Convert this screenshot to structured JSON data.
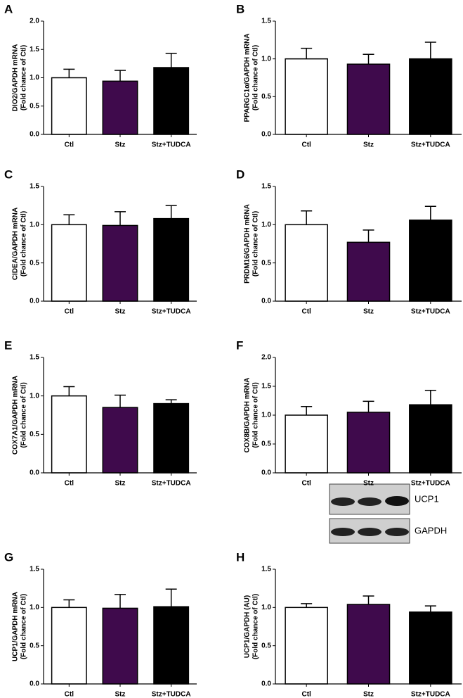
{
  "chart_data": [
    {
      "type": "bar",
      "panel": "A",
      "ylabel": [
        "DIO2/GAPDH mRNA",
        "(Fold chance of Ctl)"
      ],
      "categories": [
        "Ctl",
        "Stz",
        "Stz+TUDCA"
      ],
      "values": [
        1.0,
        0.94,
        1.18
      ],
      "errors": [
        0.15,
        0.19,
        0.25
      ],
      "colors": [
        "#ffffff",
        "#3f0a4c",
        "#000000"
      ],
      "ylim": [
        0,
        2
      ],
      "yticks": [
        {
          "value": 0,
          "label": "0.0"
        },
        0.5,
        {
          "value": 1,
          "label": "1.0"
        },
        1.5,
        {
          "value": 2,
          "label": "2.0"
        }
      ]
    },
    {
      "type": "bar",
      "panel": "B",
      "ylabel": [
        "PPARGC1α/GAPDH mRNA",
        "(Fold chance of Ctl)"
      ],
      "categories": [
        "Ctl",
        "Stz",
        "Stz+TUDCA"
      ],
      "values": [
        1.0,
        0.93,
        1.0
      ],
      "errors": [
        0.14,
        0.13,
        0.22
      ],
      "colors": [
        "#ffffff",
        "#3f0a4c",
        "#000000"
      ],
      "ylim": [
        0,
        1.5
      ],
      "yticks": [
        {
          "value": 0,
          "label": "0.0"
        },
        0.5,
        {
          "value": 1,
          "label": "1.0"
        },
        1.5
      ]
    },
    {
      "type": "bar",
      "panel": "C",
      "ylabel": [
        "CIDEA/GAPDH mRNA",
        "(Fold chance of Ctl)"
      ],
      "categories": [
        "Ctl",
        "Stz",
        "Stz+TUDCA"
      ],
      "values": [
        1.0,
        0.99,
        1.08
      ],
      "errors": [
        0.13,
        0.18,
        0.17
      ],
      "colors": [
        "#ffffff",
        "#3f0a4c",
        "#000000"
      ],
      "ylim": [
        0,
        1.5
      ],
      "yticks": [
        {
          "value": 0,
          "label": "0.0"
        },
        0.5,
        {
          "value": 1,
          "label": "1.0"
        },
        1.5
      ]
    },
    {
      "type": "bar",
      "panel": "D",
      "ylabel": [
        "PRDM16/GAPDH mRNA",
        "(Fold chance of Ctl)"
      ],
      "categories": [
        "Ctl",
        "Stz",
        "Stz+TUDCA"
      ],
      "values": [
        1.0,
        0.77,
        1.06
      ],
      "errors": [
        0.18,
        0.16,
        0.18
      ],
      "colors": [
        "#ffffff",
        "#3f0a4c",
        "#000000"
      ],
      "ylim": [
        0,
        1.5
      ],
      "yticks": [
        {
          "value": 0,
          "label": "0.0"
        },
        0.5,
        {
          "value": 1,
          "label": "1.0"
        },
        1.5
      ]
    },
    {
      "type": "bar",
      "panel": "E",
      "ylabel": [
        "COX7A1/GAPDH mRNA",
        "(Fold chance of Ctl)"
      ],
      "categories": [
        "Ctl",
        "Stz",
        "Stz+TUDCA"
      ],
      "values": [
        1.0,
        0.85,
        0.9
      ],
      "errors": [
        0.12,
        0.16,
        0.05
      ],
      "colors": [
        "#ffffff",
        "#3f0a4c",
        "#000000"
      ],
      "ylim": [
        0,
        1.5
      ],
      "yticks": [
        {
          "value": 0,
          "label": "0.0"
        },
        0.5,
        {
          "value": 1,
          "label": "1.0"
        },
        1.5
      ]
    },
    {
      "type": "bar",
      "panel": "F",
      "ylabel": [
        "COX8B/GAPDH mRNA",
        "(Fold chance of Ctl)"
      ],
      "categories": [
        "Ctl",
        "Stz",
        "Stz+TUDCA"
      ],
      "values": [
        1.0,
        1.05,
        1.18
      ],
      "errors": [
        0.15,
        0.19,
        0.25
      ],
      "colors": [
        "#ffffff",
        "#3f0a4c",
        "#000000"
      ],
      "ylim": [
        0,
        2
      ],
      "yticks": [
        {
          "value": 0,
          "label": "0.0"
        },
        0.5,
        {
          "value": 1,
          "label": "1.0"
        },
        1.5,
        {
          "value": 2,
          "label": "2.0"
        }
      ]
    },
    {
      "type": "bar",
      "panel": "G",
      "ylabel": [
        "UCP1/GAPDH mRNA",
        "(Fold chance of Ctl)"
      ],
      "categories": [
        "Ctl",
        "Stz",
        "Stz+TUDCA"
      ],
      "values": [
        1.0,
        0.99,
        1.01
      ],
      "errors": [
        0.1,
        0.18,
        0.23
      ],
      "colors": [
        "#ffffff",
        "#3f0a4c",
        "#000000"
      ],
      "ylim": [
        0,
        1.5
      ],
      "yticks": [
        {
          "value": 0,
          "label": "0.0"
        },
        0.5,
        {
          "value": 1,
          "label": "1.0"
        },
        1.5
      ]
    },
    {
      "type": "bar",
      "panel": "H",
      "ylabel": [
        "UCP1/GAPDH (AU)",
        "(Fold chance of Ctl)"
      ],
      "categories": [
        "Ctl",
        "Stz",
        "Stz+TUDCA"
      ],
      "values": [
        1.0,
        1.04,
        0.94
      ],
      "errors": [
        0.05,
        0.11,
        0.08
      ],
      "colors": [
        "#ffffff",
        "#3f0a4c",
        "#000000"
      ],
      "ylim": [
        0,
        1.5
      ],
      "yticks": [
        {
          "value": 0,
          "label": "0.0"
        },
        0.5,
        {
          "value": 1,
          "label": "1.0"
        },
        1.5
      ]
    }
  ],
  "blot": {
    "labels": [
      "UCP1",
      "GAPDH"
    ]
  }
}
